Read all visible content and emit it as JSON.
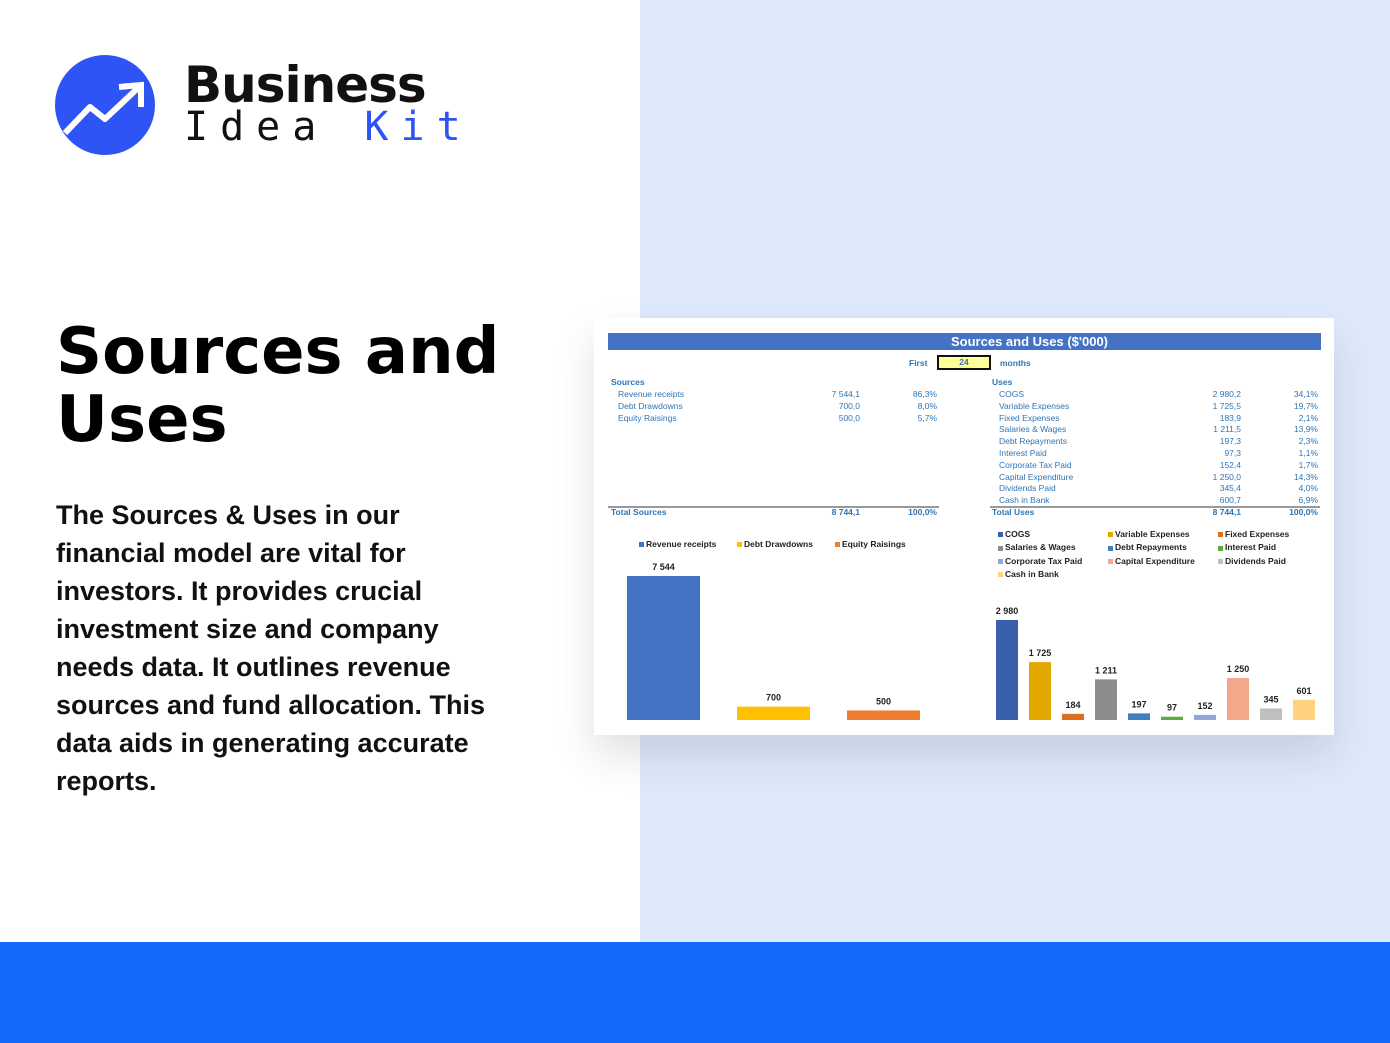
{
  "brand": {
    "line1": "Business",
    "line2a": "Idea",
    "line2b": "Kit",
    "color": "#2f54f5"
  },
  "title": "Sources and Uses",
  "description": "The Sources & Uses in our financial model are vital for investors. It provides crucial investment size and company needs data. It outlines revenue sources and fund allocation. This data aids in generating accurate reports.",
  "sheet": {
    "title": "Sources and Uses ($'000)",
    "period": {
      "prefix": "First",
      "value": "24",
      "suffix": "months"
    },
    "sources": {
      "heading": "Sources",
      "rows": [
        {
          "label": "Revenue receipts",
          "value": "7 544,1",
          "pct": "86,3%"
        },
        {
          "label": "Debt Drawdowns",
          "value": "700,0",
          "pct": "8,0%"
        },
        {
          "label": "Equity Raisings",
          "value": "500,0",
          "pct": "5,7%"
        }
      ],
      "total": {
        "label": "Total Sources",
        "value": "8 744,1",
        "pct": "100,0%"
      }
    },
    "uses": {
      "heading": "Uses",
      "rows": [
        {
          "label": "COGS",
          "value": "2 980,2",
          "pct": "34,1%"
        },
        {
          "label": "Variable Expenses",
          "value": "1 725,5",
          "pct": "19,7%"
        },
        {
          "label": "Fixed Expenses",
          "value": "183,9",
          "pct": "2,1%"
        },
        {
          "label": "Salaries & Wages",
          "value": "1 211,5",
          "pct": "13,9%"
        },
        {
          "label": "Debt Repayments",
          "value": "197,3",
          "pct": "2,3%"
        },
        {
          "label": "Interest Paid",
          "value": "97,3",
          "pct": "1,1%"
        },
        {
          "label": "Corporate Tax Paid",
          "value": "152,4",
          "pct": "1,7%"
        },
        {
          "label": "Capital Expenditure",
          "value": "1 250,0",
          "pct": "14,3%"
        },
        {
          "label": "Dividends Paid",
          "value": "345,4",
          "pct": "4,0%"
        },
        {
          "label": "Cash in Bank",
          "value": "600,7",
          "pct": "6,9%"
        }
      ],
      "total": {
        "label": "Total Uses",
        "value": "8 744,1",
        "pct": "100,0%"
      }
    }
  },
  "chart_data": [
    {
      "type": "bar",
      "categories": [
        "Revenue receipts",
        "Debt Drawdowns",
        "Equity Raisings"
      ],
      "values": [
        7544,
        700,
        500
      ],
      "labels": [
        "7 544",
        "700",
        "500"
      ],
      "colors": [
        "#4472c4",
        "#ffc000",
        "#ed7d31"
      ],
      "legend": "top"
    },
    {
      "type": "bar",
      "categories": [
        "COGS",
        "Variable Expenses",
        "Fixed Expenses",
        "Salaries & Wages",
        "Debt Repayments",
        "Interest Paid",
        "Corporate Tax Paid",
        "Capital Expenditure",
        "Dividends Paid",
        "Cash in Bank"
      ],
      "values": [
        2980,
        1725,
        184,
        1211,
        197,
        97,
        152,
        1250,
        345,
        601
      ],
      "labels": [
        "2 980",
        "1 725",
        "184",
        "1 211",
        "197",
        "97",
        "152",
        "1 250",
        "345",
        "601"
      ],
      "colors": [
        "#3a5fad",
        "#e2a800",
        "#e06c22",
        "#8c8c8c",
        "#3f7fc1",
        "#5fa83b",
        "#8fa8dc",
        "#f4a88a",
        "#bfbfbf",
        "#ffd280"
      ],
      "legend": "top"
    }
  ]
}
